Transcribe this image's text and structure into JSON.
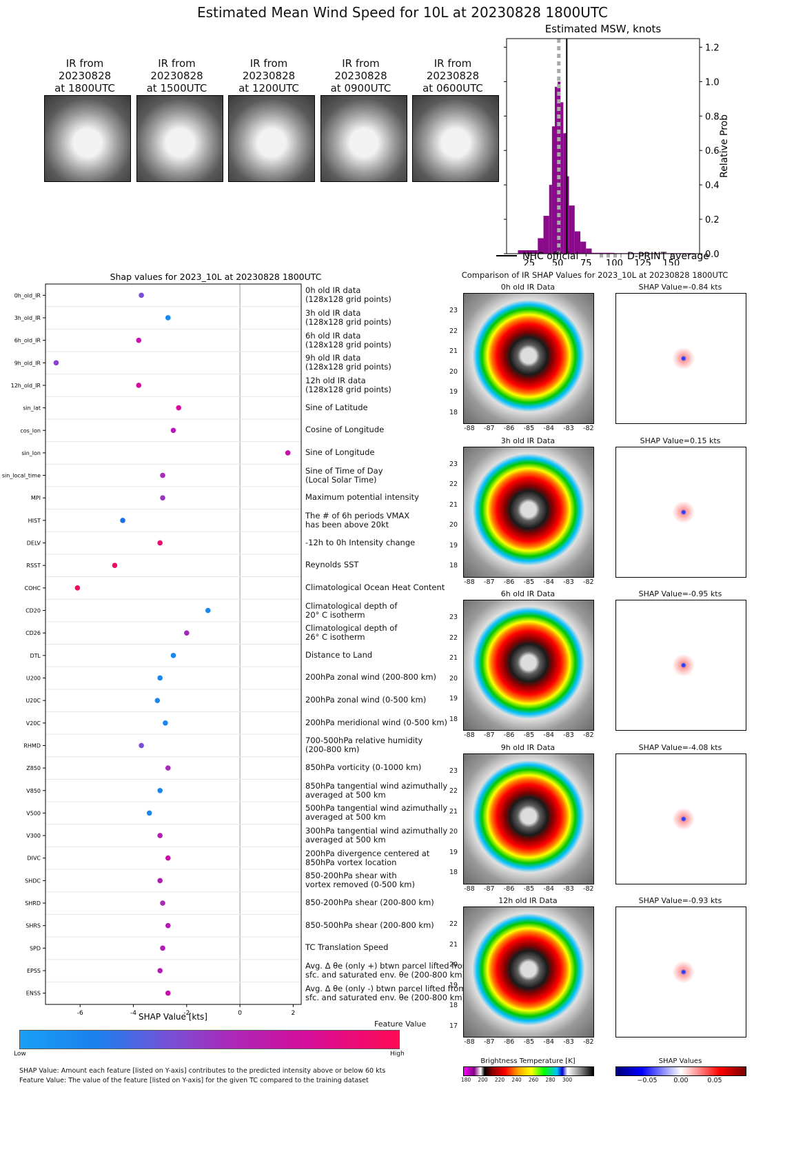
{
  "title": "Estimated Mean Wind Speed for 10L at 20230828 1800UTC",
  "ir_panels": [
    {
      "line1": "IR from",
      "line2": "20230828",
      "line3": "at 1800UTC"
    },
    {
      "line1": "IR from",
      "line2": "20230828",
      "line3": "at 1500UTC"
    },
    {
      "line1": "IR from",
      "line2": "20230828",
      "line3": "at 1200UTC"
    },
    {
      "line1": "IR from",
      "line2": "20230828",
      "line3": "at 0900UTC"
    },
    {
      "line1": "IR from",
      "line2": "20230828",
      "line3": "at 0600UTC"
    }
  ],
  "chart_data": [
    {
      "type": "bar",
      "title": "Estimated MSW, knots",
      "ylabel": "Relative Prob",
      "xlim": [
        5,
        175
      ],
      "ylim": [
        0,
        1.25
      ],
      "x_ticks": [
        25,
        50,
        75,
        100,
        125,
        150
      ],
      "y_ticks": [
        "0.0",
        "0.2",
        "0.4",
        "0.6",
        "0.8",
        "1.0",
        "1.2"
      ],
      "bins": [
        [
          15,
          32.5,
          0.02
        ],
        [
          32.5,
          37.5,
          0.09
        ],
        [
          37.5,
          42.5,
          0.22
        ],
        [
          42.5,
          45,
          0.4
        ],
        [
          45,
          47.5,
          0.74
        ],
        [
          47.5,
          50,
          0.97
        ],
        [
          50,
          52.5,
          1.0
        ],
        [
          52.5,
          55,
          0.88
        ],
        [
          55,
          57.5,
          0.7
        ],
        [
          57.5,
          60,
          0.45
        ],
        [
          60,
          65,
          0.28
        ],
        [
          65,
          70,
          0.13
        ],
        [
          70,
          75,
          0.07
        ],
        [
          75,
          80,
          0.03
        ],
        [
          80,
          100,
          0.005
        ],
        [
          100,
          170,
          0.003
        ]
      ],
      "nhc_official": 58,
      "dprint_average": 51,
      "legend": {
        "nhc": "NHC official",
        "dprint": "D-PRINT average"
      }
    },
    {
      "type": "scatter",
      "title": "Shap values for 2023_10L at 20230828 1800UTC",
      "xlabel": "SHAP Value [kts]",
      "xlim": [
        -7.3,
        2.3
      ],
      "x_ticks": [
        -6,
        -4,
        -2,
        0,
        2
      ],
      "colorbar": {
        "label": "Feature Value",
        "low": "Low",
        "high": "High"
      },
      "features": [
        {
          "code": "0h_old_IR",
          "shap": -3.7,
          "color": "#7a4fd6",
          "d1": "0h old IR data",
          "d2": "(128x128 grid points)"
        },
        {
          "code": "3h_old_IR",
          "shap": -2.7,
          "color": "#1a87ee",
          "d1": "3h old IR data",
          "d2": "(128x128 grid points)"
        },
        {
          "code": "6h_old_IR",
          "shap": -3.8,
          "color": "#c413b0",
          "d1": "6h old IR data",
          "d2": "(128x128 grid points)"
        },
        {
          "code": "9h_old_IR",
          "shap": -6.9,
          "color": "#8a3fd0",
          "d1": "9h old IR data",
          "d2": "(128x128 grid points)"
        },
        {
          "code": "12h_old_IR",
          "shap": -3.8,
          "color": "#d40d9c",
          "d1": "12h old IR data",
          "d2": "(128x128 grid points)"
        },
        {
          "code": "sin_lat",
          "shap": -2.3,
          "color": "#d40d9c",
          "d1": "Sine of Latitude",
          "d2": ""
        },
        {
          "code": "cos_lon",
          "shap": -2.5,
          "color": "#b21bb4",
          "d1": "Cosine of Longitude",
          "d2": ""
        },
        {
          "code": "sin_lon",
          "shap": 1.8,
          "color": "#c711a6",
          "d1": "Sine of Longitude",
          "d2": ""
        },
        {
          "code": "sin_local_time",
          "shap": -2.9,
          "color": "#a92ab8",
          "d1": "Sine of Time of Day",
          "d2": "(Local Solar Time)"
        },
        {
          "code": "MPI",
          "shap": -2.9,
          "color": "#9a33c0",
          "d1": "Maximum potential intensity",
          "d2": ""
        },
        {
          "code": "HIST",
          "shap": -4.4,
          "color": "#1a6fe6",
          "d1": "The # of 6h periods VMAX",
          "d2": "has been above 20kt"
        },
        {
          "code": "DELV",
          "shap": -3.0,
          "color": "#ee0a70",
          "d1": "-12h to 0h Intensity change",
          "d2": ""
        },
        {
          "code": "RSST",
          "shap": -4.7,
          "color": "#f00a60",
          "d1": "Reynolds SST",
          "d2": ""
        },
        {
          "code": "COHC",
          "shap": -6.1,
          "color": "#f00a60",
          "d1": "Climatological Ocean Heat Content",
          "d2": ""
        },
        {
          "code": "CD20",
          "shap": -1.2,
          "color": "#1a87ee",
          "d1": "Climatological depth of",
          "d2": "20° C isotherm"
        },
        {
          "code": "CD26",
          "shap": -2.0,
          "color": "#a427bb",
          "d1": "Climatological depth of",
          "d2": "26° C isotherm"
        },
        {
          "code": "DTL",
          "shap": -2.5,
          "color": "#1a87ee",
          "d1": "Distance to Land",
          "d2": ""
        },
        {
          "code": "U200",
          "shap": -3.0,
          "color": "#1a87ee",
          "d1": "200hPa zonal wind (200-800 km)",
          "d2": ""
        },
        {
          "code": "U20C",
          "shap": -3.1,
          "color": "#1a87ee",
          "d1": "200hPa zonal wind (0-500 km)",
          "d2": ""
        },
        {
          "code": "V20C",
          "shap": -2.8,
          "color": "#1a87ee",
          "d1": "200hPa meridional wind (0-500 km)",
          "d2": ""
        },
        {
          "code": "RHMD",
          "shap": -3.7,
          "color": "#7a4fd6",
          "d1": "700-500hPa relative humidity",
          "d2": "(200-800 km)"
        },
        {
          "code": "Z850",
          "shap": -2.7,
          "color": "#a92ab8",
          "d1": "850hPa vorticity (0-1000 km)",
          "d2": ""
        },
        {
          "code": "V850",
          "shap": -3.0,
          "color": "#1a87ee",
          "d1": "850hPa tangential wind azimuthally",
          "d2": "averaged at 500 km"
        },
        {
          "code": "V500",
          "shap": -3.4,
          "color": "#1a87ee",
          "d1": "500hPa tangential wind azimuthally",
          "d2": "averaged at 500 km"
        },
        {
          "code": "V300",
          "shap": -3.0,
          "color": "#b21bb4",
          "d1": "300hPa tangential wind azimuthally",
          "d2": "averaged at 500 km"
        },
        {
          "code": "DIVC",
          "shap": -2.7,
          "color": "#c711a6",
          "d1": "200hPa divergence centered at",
          "d2": "850hPa vortex location"
        },
        {
          "code": "SHDC",
          "shap": -3.0,
          "color": "#b21bb4",
          "d1": "850-200hPa shear with",
          "d2": "vortex removed (0-500 km)"
        },
        {
          "code": "SHRD",
          "shap": -2.9,
          "color": "#a92ab8",
          "d1": "850-200hPa shear (200-800 km)",
          "d2": ""
        },
        {
          "code": "SHRS",
          "shap": -2.7,
          "color": "#b21bb4",
          "d1": "850-500hPa shear (200-800 km)",
          "d2": ""
        },
        {
          "code": "SPD",
          "shap": -2.9,
          "color": "#b21bb4",
          "d1": "TC Translation Speed",
          "d2": ""
        },
        {
          "code": "EPSS",
          "shap": -3.0,
          "color": "#b21bb4",
          "d1": "Avg. Δ θe (only +) btwn parcel lifted from",
          "d2": "sfc. and saturated env. θe (200-800 km)"
        },
        {
          "code": "ENSS",
          "shap": -2.7,
          "color": "#c711a6",
          "d1": "Avg. Δ θe (only -) btwn parcel lifted from",
          "d2": "sfc. and saturated env. θe (200-800 km)"
        }
      ]
    }
  ],
  "footnote1": "SHAP Value: Amount each feature [listed on Y-axis] contributes to the predicted intensity above or below 60 kts",
  "footnote2": "Feature Value: The value of the feature [listed on Y-axis] for the given TC compared to the training dataset",
  "comparison": {
    "title": "Comparison of IR SHAP Values for 2023_10L at 20230828 1800UTC",
    "rows": [
      {
        "ir_title": "0h old IR Data",
        "shap_title": "SHAP Value=-0.84 kts",
        "lat_ticks": [
          "23",
          "22",
          "21",
          "20",
          "19",
          "18"
        ]
      },
      {
        "ir_title": "3h old IR Data",
        "shap_title": "SHAP Value=0.15 kts",
        "lat_ticks": [
          "23",
          "22",
          "21",
          "20",
          "19",
          "18"
        ]
      },
      {
        "ir_title": "6h old IR Data",
        "shap_title": "SHAP Value=-0.95 kts",
        "lat_ticks": [
          "23",
          "22",
          "21",
          "20",
          "19",
          "18"
        ]
      },
      {
        "ir_title": "9h old IR Data",
        "shap_title": "SHAP Value=-4.08 kts",
        "lat_ticks": [
          "23",
          "22",
          "21",
          "20",
          "19",
          "18"
        ]
      },
      {
        "ir_title": "12h old IR Data",
        "shap_title": "SHAP Value=-0.93 kts",
        "lat_ticks": [
          "22",
          "21",
          "20",
          "19",
          "18",
          "17"
        ]
      }
    ],
    "lon_ticks": [
      "-88",
      "-87",
      "-86",
      "-85",
      "-84",
      "-83",
      "-82"
    ],
    "bt_label": "Brightness Temperature [K]",
    "bt_ticks": [
      "180",
      "200",
      "220",
      "240",
      "260",
      "280",
      "300"
    ],
    "shap_label": "SHAP Values",
    "shap_ticks": [
      "−0.05",
      "0.00",
      "0.05"
    ]
  }
}
